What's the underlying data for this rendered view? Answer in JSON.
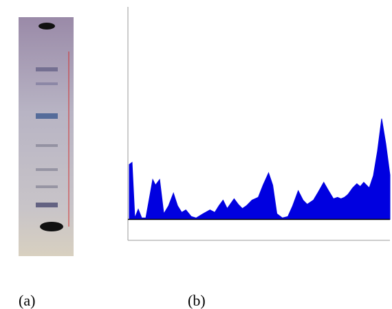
{
  "chart_data": {
    "type": "area",
    "color": "#0000e0",
    "x": [
      2,
      6,
      10,
      15,
      20,
      26,
      36,
      40,
      46,
      52,
      59,
      66,
      72,
      78,
      84,
      92,
      99,
      109,
      119,
      126,
      132,
      138,
      144,
      154,
      160,
      166,
      172,
      180,
      189,
      196,
      204,
      210,
      216,
      224,
      232,
      239,
      247,
      254,
      260,
      269,
      276,
      284,
      291,
      298,
      304,
      309,
      314,
      319,
      326,
      332,
      337,
      342,
      350,
      356,
      362,
      368,
      374,
      380
    ],
    "values": [
      15.7,
      16.3,
      0.4,
      2.9,
      0.4,
      0.4,
      11.4,
      9.8,
      11.4,
      1.6,
      3.9,
      7.5,
      3.9,
      2.0,
      2.7,
      0.8,
      0.4,
      1.6,
      2.7,
      2.0,
      3.9,
      5.5,
      3.1,
      5.9,
      4.3,
      3.1,
      3.9,
      5.5,
      6.3,
      9.8,
      13.3,
      9.8,
      1.6,
      0.4,
      0.8,
      3.9,
      8.2,
      5.5,
      4.3,
      5.5,
      7.8,
      10.6,
      8.2,
      5.9,
      6.3,
      5.9,
      6.3,
      7.1,
      9.0,
      10.2,
      9.4,
      10.6,
      9.0,
      12.5,
      19.6,
      28.8,
      21.6,
      12.7
    ],
    "xlim": [
      0,
      380
    ],
    "ylim": [
      -6,
      60
    ]
  },
  "captions": {
    "a": "(a)",
    "b": "(b)"
  }
}
